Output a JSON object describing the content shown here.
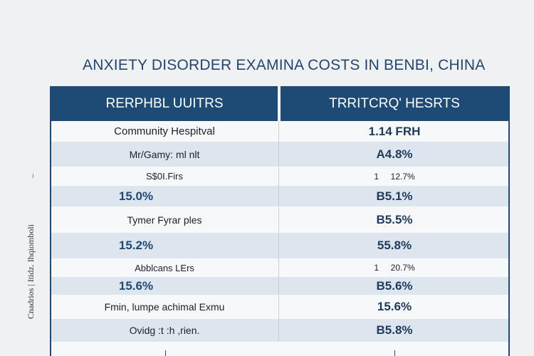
{
  "chart_data": {
    "type": "table",
    "title": "ANXIETY DISORDER EXAMINA COSTS IN BENBI, CHINA",
    "ylabel": "Cnadrios | Itidz. Ihqiomboli",
    "columns": [
      "RERPHBL UUITRS",
      "TRRITCRQ' HESRTS"
    ],
    "rows": [
      {
        "label": "Community Hespitval",
        "value": "1.14 FRH",
        "style": "normal"
      },
      {
        "label": "Mr/Gamy: ml nlt",
        "value": "A4.8%",
        "style": "big"
      },
      {
        "label": "S$0I.Firs",
        "value": "1     12.7%",
        "style": "small"
      },
      {
        "label": "15.0%",
        "value": "B5.1%",
        "style": "bigbold"
      },
      {
        "label": "Tymer Fyrar ples",
        "value": "B5.5%",
        "style": "big"
      },
      {
        "label": "15.2%",
        "value": "55.8%",
        "style": "bigbold"
      },
      {
        "label": "Abblcans LErs",
        "value": "1     20.7%",
        "style": "small"
      },
      {
        "label": "15.6%",
        "value": "B5.6%",
        "style": "bigbold"
      },
      {
        "label": "Fmin, lumpe achimal Exmu",
        "value": "15.6%",
        "style": "big"
      },
      {
        "label": "Ovidg :t :h ,rien.",
        "value": "B5.8%",
        "style": "big"
      }
    ]
  }
}
